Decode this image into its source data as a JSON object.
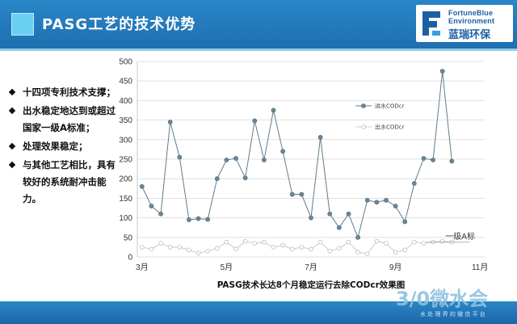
{
  "header": {
    "title": "PASG工艺的技术优势"
  },
  "logo": {
    "line1": "FortuneBlue",
    "line2": "Environment",
    "cn": "蓝瑞环保"
  },
  "bullets": [
    "十四项专利技术支撑；",
    "出水稳定地达到或超过国家一级A标准；",
    "处理效果稳定；",
    "与其他工艺相比，具有较好的系统耐冲击能力。"
  ],
  "watermark": {
    "text": "微水会",
    "prefix": "3/0",
    "sub": "水 处 理 界 的 微 信 平 台"
  },
  "chart_data": {
    "type": "line",
    "title": "",
    "caption": "PASG技术长达8个月稳定运行去除CODcr效果图",
    "xlabel": "",
    "ylabel": "",
    "ylim": [
      0,
      500
    ],
    "yticks": [
      0,
      50,
      100,
      150,
      200,
      250,
      300,
      350,
      400,
      450,
      500
    ],
    "xticks": [
      {
        "label": "3月",
        "index": 0
      },
      {
        "label": "5月",
        "index": 9
      },
      {
        "label": "7月",
        "index": 18
      },
      {
        "label": "9月",
        "index": 27
      },
      {
        "label": "11月",
        "index": 36
      }
    ],
    "x_count": 37,
    "grid": true,
    "legend": "upper-right",
    "series": [
      {
        "name": "进水CODcr",
        "color": "#5f7b8a",
        "marker": "filled",
        "values": [
          180,
          130,
          110,
          345,
          255,
          95,
          98,
          96,
          200,
          248,
          252,
          202,
          348,
          248,
          375,
          270,
          160,
          160,
          100,
          306,
          110,
          75,
          110,
          50,
          145,
          140,
          145,
          130,
          90,
          188,
          252,
          248,
          475,
          245
        ]
      },
      {
        "name": "出水CODcr",
        "color": "#d2d2d2",
        "marker": "hollow",
        "values": [
          25,
          20,
          35,
          25,
          25,
          18,
          10,
          15,
          22,
          38,
          20,
          40,
          35,
          38,
          25,
          30,
          20,
          25,
          20,
          38,
          15,
          22,
          38,
          12,
          8,
          40,
          35,
          12,
          18,
          38,
          35,
          38,
          40,
          38
        ]
      }
    ],
    "annotation": {
      "label": "一级A标",
      "value": 50
    }
  }
}
